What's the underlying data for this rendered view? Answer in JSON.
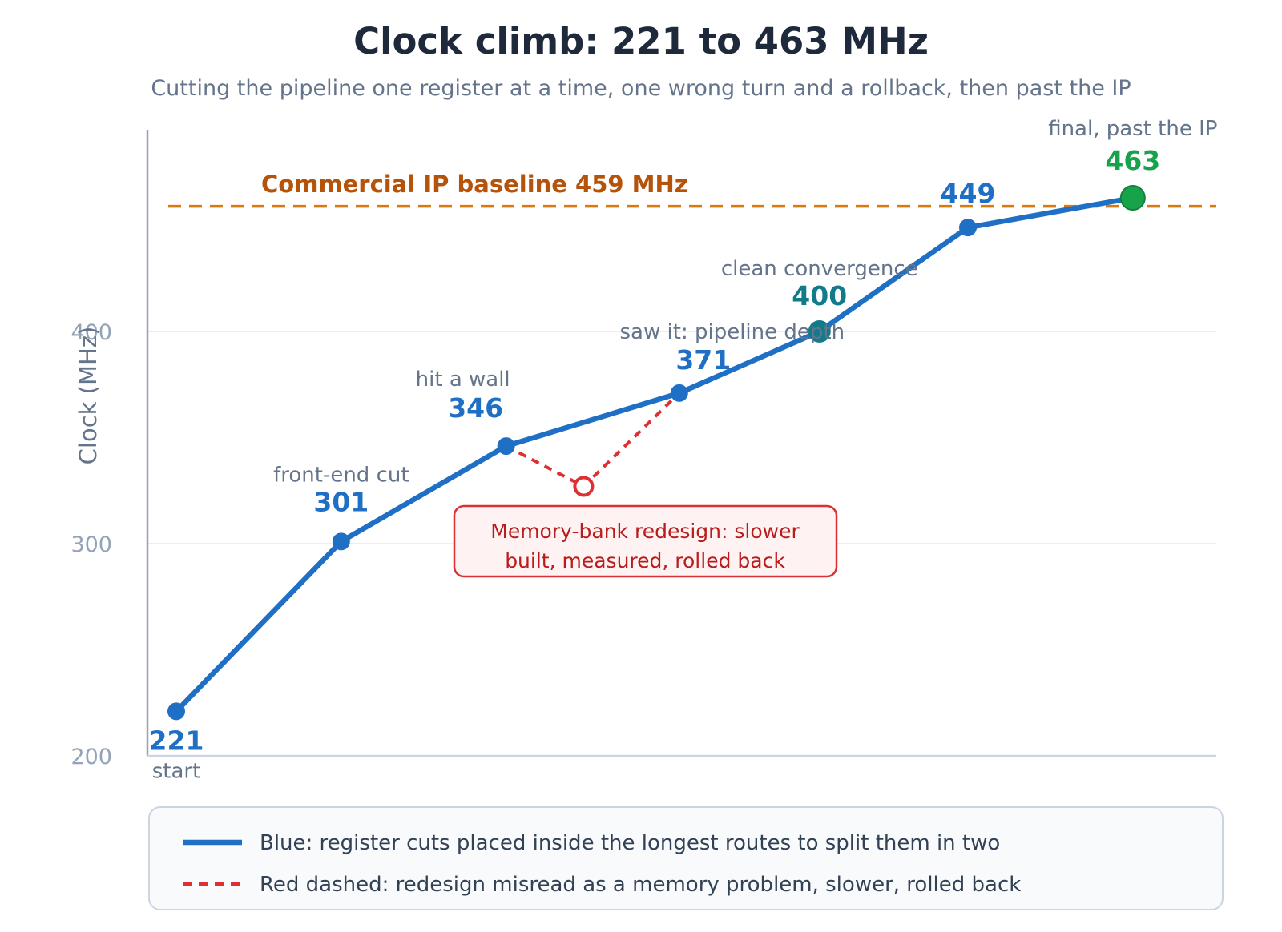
{
  "title": "Clock climb: 221 to 463 MHz",
  "subtitle": "Cutting the pipeline one register at a time, one wrong turn and a rollback, then past the IP",
  "colors": {
    "main": "#1f6fc5",
    "detour": "#dc3034",
    "baseline": "#d97a10",
    "teal": "#127a8a",
    "green": "#16a34a",
    "axis": "#94a3b8",
    "grid": "#e2e8f0"
  },
  "chart_data": {
    "type": "line",
    "title": "Clock climb: 221 to 463 MHz",
    "subtitle": "Cutting the pipeline one register at a time, one wrong turn and a rollback, then past the IP",
    "ylabel": "Clock (MHz)",
    "xlabel": "",
    "ylim": [
      200,
      480
    ],
    "yticks": [
      200,
      300,
      400
    ],
    "grid": true,
    "baseline": {
      "value": 459,
      "label": "Commercial IP baseline 459 MHz"
    },
    "series": [
      {
        "name": "Blue: register cuts placed inside the longest routes to split them in two",
        "points": [
          {
            "x": 0,
            "y": 221,
            "label": "221",
            "note": "start"
          },
          {
            "x": 1,
            "y": 301,
            "label": "301",
            "note": "front-end cut"
          },
          {
            "x": 2,
            "y": 346,
            "label": "346",
            "note": "hit a wall"
          },
          {
            "x": 3.05,
            "y": 371,
            "label": "371",
            "note": "saw it: pipeline depth"
          },
          {
            "x": 3.9,
            "y": 400,
            "label": "400",
            "note": "clean convergence"
          },
          {
            "x": 4.8,
            "y": 449,
            "label": "449",
            "note": ""
          },
          {
            "x": 5.8,
            "y": 463,
            "label": "463",
            "note": "final, past the IP"
          }
        ]
      },
      {
        "name": "Red dashed: redesign misread as a memory problem, slower, rolled back",
        "points": [
          {
            "x": 2,
            "y": 346
          },
          {
            "x": 2.47,
            "y": 327
          },
          {
            "x": 3.05,
            "y": 371
          }
        ]
      }
    ],
    "callout": {
      "lines": [
        "Memory-bank redesign: slower",
        "built, measured, rolled back"
      ]
    },
    "legend": [
      {
        "style": "solid",
        "text": "Blue: register cuts placed inside the longest routes to split them in two"
      },
      {
        "style": "dashed",
        "text": "Red dashed: redesign misread as a memory problem, slower, rolled back"
      }
    ]
  }
}
